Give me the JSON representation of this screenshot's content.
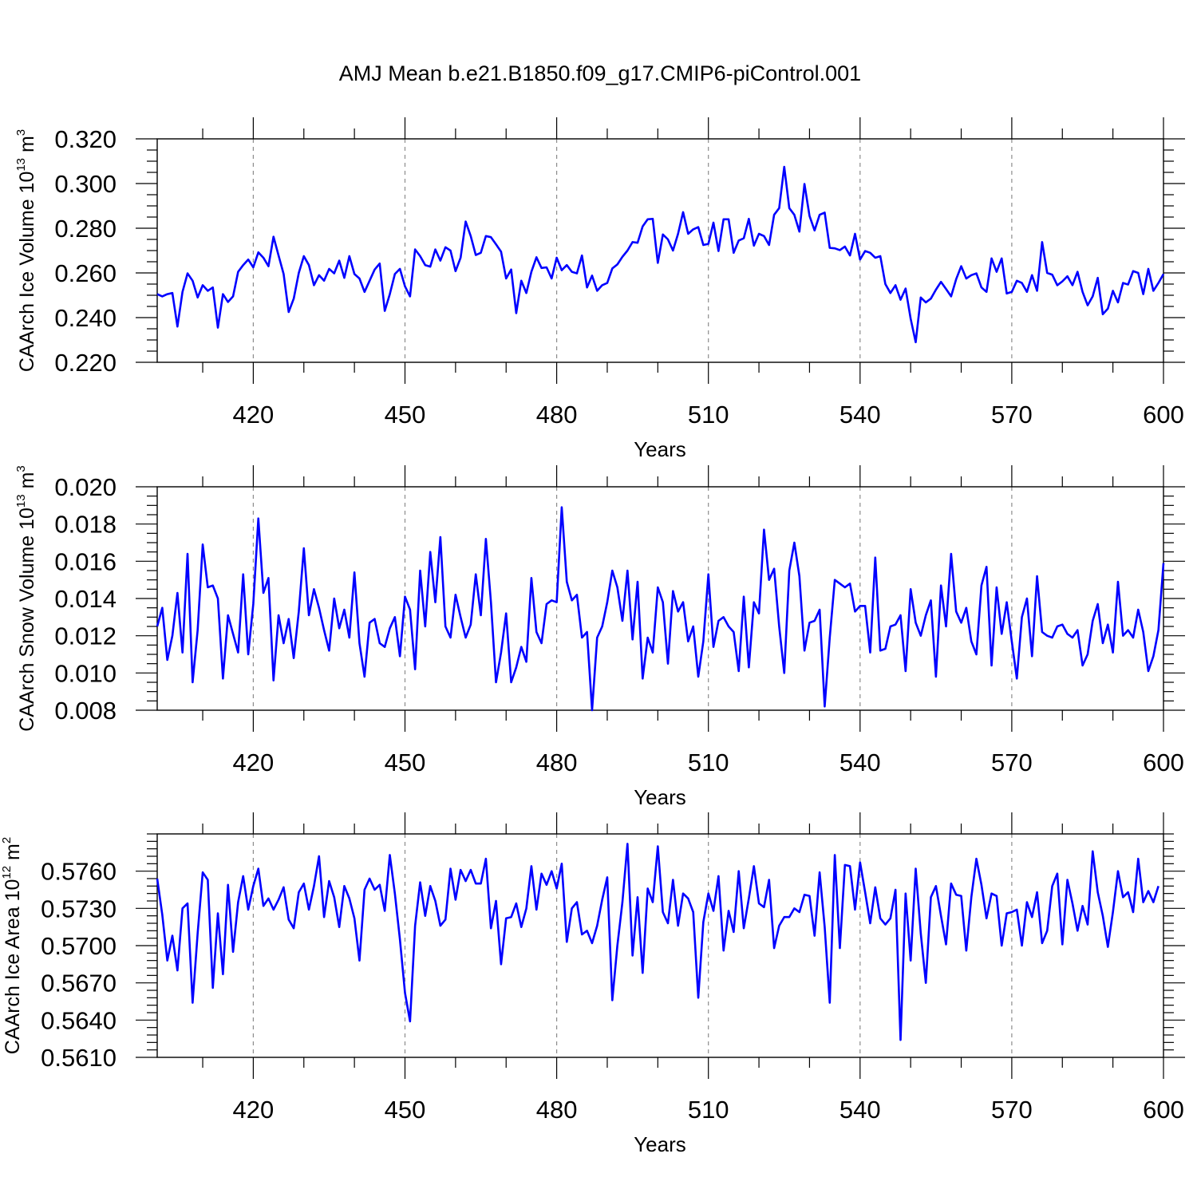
{
  "title": "AMJ Mean b.e21.B1850.f09_g17.CMIP6-piControl.001",
  "series_color": "#0000ff",
  "grid": "vertical dashed at major x ticks",
  "chart_data": [
    {
      "type": "line",
      "title": "",
      "xlabel": "Years",
      "ylabel": {
        "main": "CAArch Ice Volume 10",
        "exp": "13",
        "unit": " m",
        "unit_exp": "3"
      },
      "xlim": [
        401,
        600
      ],
      "ylim": [
        0.22,
        0.32
      ],
      "x_ticks": [
        420,
        450,
        480,
        510,
        540,
        570,
        600
      ],
      "y_ticks": [
        0.22,
        0.24,
        0.26,
        0.28,
        0.3,
        0.32
      ],
      "y_tick_labels": [
        "0.220",
        "0.240",
        "0.260",
        "0.280",
        "0.300",
        "0.320"
      ],
      "y_minor_step": 0.005,
      "x_start": 401,
      "values": [
        0.2505,
        0.2495,
        0.2505,
        0.251,
        0.236,
        0.2515,
        0.2598,
        0.2565,
        0.249,
        0.2545,
        0.252,
        0.2535,
        0.2355,
        0.2505,
        0.247,
        0.2495,
        0.2605,
        0.2635,
        0.266,
        0.2625,
        0.2692,
        0.2668,
        0.263,
        0.2762,
        0.2678,
        0.2595,
        0.2425,
        0.2485,
        0.26,
        0.2675,
        0.2635,
        0.2545,
        0.259,
        0.2565,
        0.2618,
        0.2598,
        0.2655,
        0.2578,
        0.2675,
        0.2595,
        0.2575,
        0.2515,
        0.2565,
        0.2615,
        0.2642,
        0.243,
        0.2505,
        0.2595,
        0.2618,
        0.254,
        0.2495,
        0.2705,
        0.2675,
        0.2635,
        0.2628,
        0.2705,
        0.2655,
        0.2715,
        0.27,
        0.2608,
        0.2668,
        0.283,
        0.2765,
        0.268,
        0.269,
        0.2765,
        0.276,
        0.2728,
        0.2695,
        0.2575,
        0.2615,
        0.242,
        0.2565,
        0.251,
        0.2605,
        0.267,
        0.2622,
        0.2625,
        0.2575,
        0.2668,
        0.2612,
        0.2635,
        0.2605,
        0.2598,
        0.2678,
        0.2535,
        0.2588,
        0.252,
        0.2545,
        0.2555,
        0.262,
        0.2638,
        0.2672,
        0.27,
        0.2738,
        0.2735,
        0.2808,
        0.284,
        0.2842,
        0.2645,
        0.2772,
        0.275,
        0.27,
        0.2775,
        0.2872,
        0.2775,
        0.2795,
        0.2805,
        0.2725,
        0.273,
        0.2825,
        0.2698,
        0.284,
        0.284,
        0.269,
        0.2745,
        0.2755,
        0.2842,
        0.2722,
        0.2775,
        0.2765,
        0.2725,
        0.286,
        0.289,
        0.3075,
        0.289,
        0.286,
        0.2785,
        0.2998,
        0.2855,
        0.279,
        0.286,
        0.287,
        0.2712,
        0.271,
        0.2702,
        0.2718,
        0.2678,
        0.2775,
        0.266,
        0.2698,
        0.269,
        0.2668,
        0.2675,
        0.255,
        0.251,
        0.2545,
        0.248,
        0.253,
        0.2395,
        0.229,
        0.249,
        0.2468,
        0.2485,
        0.2525,
        0.256,
        0.2528,
        0.2495,
        0.2572,
        0.263,
        0.2575,
        0.259,
        0.2598,
        0.2535,
        0.2515,
        0.2665,
        0.2605,
        0.2665,
        0.2508,
        0.2515,
        0.2565,
        0.2555,
        0.2515,
        0.259,
        0.252,
        0.2738,
        0.26,
        0.2592,
        0.2545,
        0.2562,
        0.2585,
        0.2545,
        0.2605,
        0.2515,
        0.2455,
        0.2495,
        0.2578,
        0.2415,
        0.244,
        0.252,
        0.2468,
        0.2555,
        0.2548,
        0.2608,
        0.26,
        0.2505,
        0.2618,
        0.252,
        0.2555,
        0.2595
      ]
    },
    {
      "type": "line",
      "title": "",
      "xlabel": "Years",
      "ylabel": {
        "main": "CAArch Snow Volume 10",
        "exp": "13",
        "unit": " m",
        "unit_exp": "3"
      },
      "xlim": [
        401,
        600
      ],
      "ylim": [
        0.008,
        0.02
      ],
      "x_ticks": [
        420,
        450,
        480,
        510,
        540,
        570,
        600
      ],
      "y_ticks": [
        0.008,
        0.01,
        0.012,
        0.014,
        0.016,
        0.018,
        0.02
      ],
      "y_tick_labels": [
        "0.008",
        "0.010",
        "0.012",
        "0.014",
        "0.016",
        "0.018",
        "0.020"
      ],
      "y_minor_step": 0.0005,
      "x_start": 401,
      "values": [
        0.0125,
        0.0135,
        0.0107,
        0.012,
        0.0143,
        0.0111,
        0.0164,
        0.0095,
        0.0123,
        0.0169,
        0.0146,
        0.0147,
        0.014,
        0.0097,
        0.0131,
        0.0121,
        0.0111,
        0.0153,
        0.011,
        0.0137,
        0.0183,
        0.0143,
        0.0151,
        0.0096,
        0.0131,
        0.0116,
        0.0129,
        0.0108,
        0.0133,
        0.0167,
        0.0131,
        0.0145,
        0.0135,
        0.0123,
        0.0112,
        0.014,
        0.0124,
        0.0134,
        0.0119,
        0.0154,
        0.0116,
        0.0098,
        0.0127,
        0.0129,
        0.0116,
        0.0114,
        0.0124,
        0.013,
        0.0109,
        0.0141,
        0.0134,
        0.0102,
        0.0155,
        0.0125,
        0.0165,
        0.0138,
        0.0173,
        0.0125,
        0.0119,
        0.0142,
        0.013,
        0.0119,
        0.0126,
        0.0153,
        0.0131,
        0.0172,
        0.0138,
        0.0095,
        0.0111,
        0.0132,
        0.0095,
        0.0103,
        0.0114,
        0.0106,
        0.0151,
        0.0122,
        0.0116,
        0.0137,
        0.0139,
        0.0138,
        0.0189,
        0.0149,
        0.0139,
        0.0142,
        0.0119,
        0.0122,
        0.008,
        0.0119,
        0.0125,
        0.0138,
        0.0155,
        0.0146,
        0.0128,
        0.0155,
        0.0118,
        0.0149,
        0.0097,
        0.0119,
        0.0111,
        0.0146,
        0.0138,
        0.0105,
        0.0144,
        0.0133,
        0.0138,
        0.0117,
        0.0125,
        0.0098,
        0.0117,
        0.0153,
        0.0114,
        0.0128,
        0.013,
        0.0125,
        0.0122,
        0.0101,
        0.0141,
        0.0103,
        0.0138,
        0.0132,
        0.0177,
        0.015,
        0.0156,
        0.0125,
        0.01,
        0.0155,
        0.017,
        0.0152,
        0.0112,
        0.0127,
        0.0128,
        0.0134,
        0.0082,
        0.0119,
        0.015,
        0.0148,
        0.0146,
        0.0148,
        0.0133,
        0.0136,
        0.0136,
        0.0111,
        0.0162,
        0.0112,
        0.0113,
        0.0125,
        0.0126,
        0.0131,
        0.0101,
        0.0145,
        0.0127,
        0.012,
        0.0131,
        0.0139,
        0.0098,
        0.0147,
        0.0125,
        0.0164,
        0.0133,
        0.0127,
        0.0135,
        0.0117,
        0.011,
        0.0147,
        0.0157,
        0.0104,
        0.0146,
        0.0121,
        0.0138,
        0.0117,
        0.0097,
        0.013,
        0.014,
        0.0109,
        0.0152,
        0.0122,
        0.012,
        0.0119,
        0.0125,
        0.0126,
        0.0121,
        0.0119,
        0.0123,
        0.0104,
        0.011,
        0.0128,
        0.0137,
        0.0116,
        0.0126,
        0.0111,
        0.0149,
        0.012,
        0.0123,
        0.0119,
        0.0134,
        0.0122,
        0.0101,
        0.0109,
        0.0123,
        0.0159
      ]
    },
    {
      "type": "line",
      "title": "",
      "xlabel": "Years",
      "ylabel": {
        "main": "CAArch Ice Area 10",
        "exp": "12",
        "unit": " m",
        "unit_exp": "2"
      },
      "xlim": [
        401,
        600
      ],
      "ylim": [
        0.561,
        0.579
      ],
      "x_ticks": [
        420,
        450,
        480,
        510,
        540,
        570,
        600
      ],
      "y_ticks": [
        0.561,
        0.564,
        0.567,
        0.57,
        0.573,
        0.576
      ],
      "y_tick_labels": [
        "0.5610",
        "0.5640",
        "0.5670",
        "0.5700",
        "0.5730",
        "0.5760"
      ],
      "y_minor_step": 0.0006,
      "x_start": 401,
      "values": [
        0.5754,
        0.5725,
        0.5688,
        0.5708,
        0.568,
        0.573,
        0.5734,
        0.5654,
        0.571,
        0.5759,
        0.5753,
        0.5666,
        0.5726,
        0.5677,
        0.5749,
        0.5695,
        0.5735,
        0.5756,
        0.5729,
        0.5748,
        0.5762,
        0.5732,
        0.5738,
        0.5729,
        0.5737,
        0.5747,
        0.5721,
        0.5714,
        0.5743,
        0.575,
        0.5729,
        0.5748,
        0.5772,
        0.5723,
        0.5752,
        0.5739,
        0.5715,
        0.5748,
        0.5738,
        0.5722,
        0.5688,
        0.5745,
        0.5754,
        0.5745,
        0.5749,
        0.5728,
        0.5773,
        0.5742,
        0.5705,
        0.5662,
        0.5639,
        0.5716,
        0.5751,
        0.5724,
        0.5748,
        0.5736,
        0.5716,
        0.5721,
        0.5762,
        0.5737,
        0.5761,
        0.5752,
        0.5761,
        0.575,
        0.575,
        0.577,
        0.5714,
        0.5736,
        0.5685,
        0.5722,
        0.5723,
        0.5734,
        0.5715,
        0.573,
        0.5764,
        0.5729,
        0.5758,
        0.5749,
        0.576,
        0.5746,
        0.5766,
        0.5703,
        0.573,
        0.5735,
        0.5709,
        0.5712,
        0.5702,
        0.5716,
        0.5737,
        0.5755,
        0.5656,
        0.57,
        0.5735,
        0.5782,
        0.5692,
        0.5739,
        0.5678,
        0.5746,
        0.5735,
        0.578,
        0.5727,
        0.5718,
        0.5753,
        0.5716,
        0.5742,
        0.5738,
        0.5727,
        0.5658,
        0.5719,
        0.5742,
        0.5728,
        0.5756,
        0.5696,
        0.5728,
        0.5711,
        0.576,
        0.5714,
        0.5738,
        0.5764,
        0.5734,
        0.5731,
        0.5753,
        0.5698,
        0.5716,
        0.5723,
        0.5723,
        0.573,
        0.5727,
        0.5741,
        0.574,
        0.5708,
        0.5759,
        0.5715,
        0.5654,
        0.5773,
        0.5698,
        0.5765,
        0.5764,
        0.5729,
        0.5767,
        0.5743,
        0.5718,
        0.5747,
        0.5722,
        0.5717,
        0.5722,
        0.5745,
        0.5624,
        0.5742,
        0.5688,
        0.5762,
        0.571,
        0.567,
        0.5739,
        0.5748,
        0.5724,
        0.5701,
        0.575,
        0.5741,
        0.574,
        0.5696,
        0.5739,
        0.577,
        0.5749,
        0.5722,
        0.5742,
        0.574,
        0.57,
        0.5726,
        0.5727,
        0.5729,
        0.57,
        0.5735,
        0.5723,
        0.5743,
        0.5702,
        0.5712,
        0.5748,
        0.5758,
        0.5701,
        0.5753,
        0.5734,
        0.5712,
        0.5732,
        0.5717,
        0.5776,
        0.5743,
        0.5724,
        0.5699,
        0.5727,
        0.576,
        0.5739,
        0.5743,
        0.5727,
        0.577,
        0.5735,
        0.5744,
        0.5735,
        0.5748
      ]
    }
  ]
}
